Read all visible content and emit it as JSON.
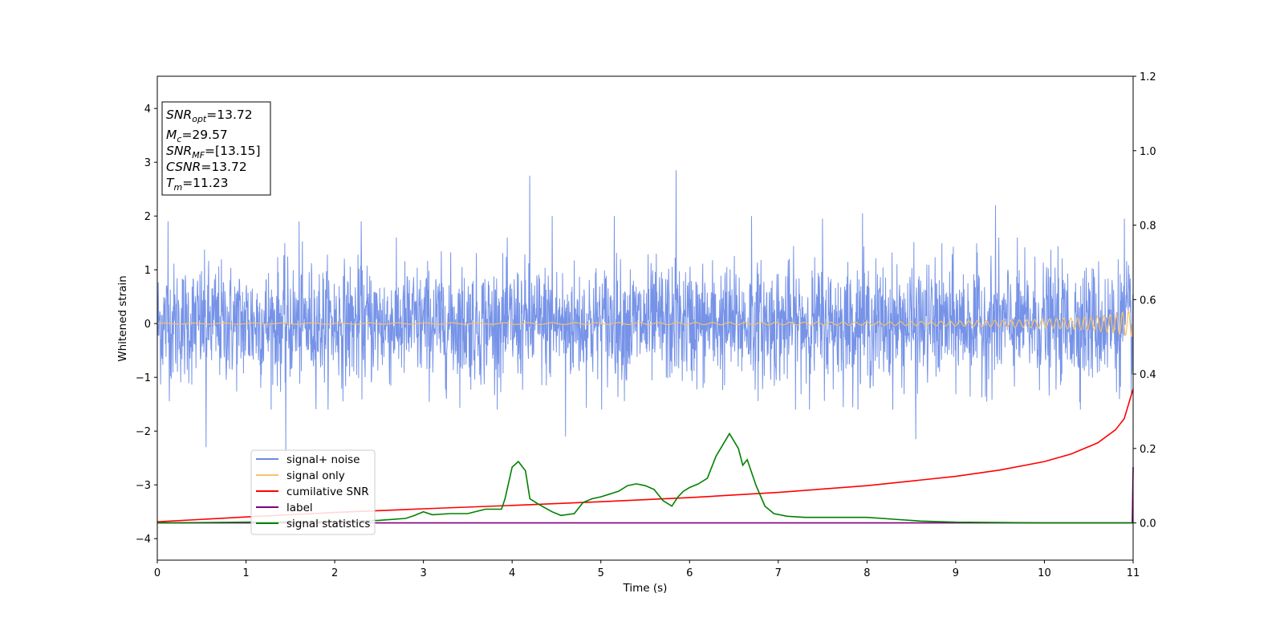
{
  "chart_data": {
    "type": "line",
    "xlabel": "Time (s)",
    "ylabel": "Whitened strain",
    "xlim": [
      0,
      11
    ],
    "ylim": [
      -4.4,
      4.6
    ],
    "y2lim": [
      -0.1,
      1.2
    ],
    "xticks": [
      "0",
      "1",
      "2",
      "3",
      "4",
      "5",
      "6",
      "7",
      "8",
      "9",
      "10",
      "11"
    ],
    "yticks": [
      "−4",
      "−3",
      "−2",
      "−1",
      "0",
      "1",
      "2",
      "3",
      "4"
    ],
    "y2ticks": [
      "0.0",
      "0.2",
      "0.4",
      "0.6",
      "0.8",
      "1.0",
      "1.2"
    ],
    "legend_position": "lower-left",
    "colors": {
      "signal_noise": "#6a8ae6",
      "signal_only": "#f5c26b",
      "cumulative_snr": "#ff0000",
      "label": "#800080",
      "signal_statistics": "#008000"
    },
    "info_box": {
      "snr_opt": "=13.72",
      "mc": "=29.57",
      "snr_mf": "=[13.15]",
      "csnr": "=13.72",
      "tm": "=11.23"
    },
    "series": [
      {
        "name": "signal+ noise",
        "axis": "left",
        "description_values": "noise, amplitude mostly within ±1.5, spikes to about 2.8 and -2.4",
        "spikes": [
          [
            0.12,
            1.9
          ],
          [
            0.55,
            -2.3
          ],
          [
            1.45,
            -2.4
          ],
          [
            1.6,
            1.9
          ],
          [
            2.3,
            1.9
          ],
          [
            4.2,
            2.75
          ],
          [
            4.45,
            2.0
          ],
          [
            4.6,
            -2.1
          ],
          [
            5.15,
            2.0
          ],
          [
            5.85,
            2.85
          ],
          [
            6.7,
            2.0
          ],
          [
            7.5,
            1.95
          ],
          [
            7.95,
            2.05
          ],
          [
            8.55,
            -2.15
          ],
          [
            9.45,
            2.2
          ],
          [
            10.9,
            1.95
          ]
        ]
      },
      {
        "name": "signal only",
        "axis": "left",
        "x": [
          0,
          2,
          4,
          6,
          8,
          9,
          10,
          10.5,
          10.8,
          11
        ],
        "amplitude": [
          0.01,
          0.012,
          0.015,
          0.02,
          0.03,
          0.045,
          0.08,
          0.12,
          0.18,
          0.25
        ]
      },
      {
        "name": "cumilative SNR",
        "axis": "right",
        "x": [
          0,
          1,
          2,
          3,
          4,
          5,
          6,
          7,
          8,
          9,
          9.5,
          10,
          10.3,
          10.6,
          10.8,
          10.9,
          11
        ],
        "y": [
          0.003,
          0.016,
          0.028,
          0.038,
          0.047,
          0.057,
          0.068,
          0.082,
          0.1,
          0.125,
          0.142,
          0.165,
          0.185,
          0.215,
          0.25,
          0.28,
          0.36
        ]
      },
      {
        "name": "label",
        "axis": "right",
        "x": [
          0,
          10.99,
          11
        ],
        "y": [
          0,
          0,
          0.15
        ]
      },
      {
        "name": "signal statistics",
        "axis": "right",
        "x": [
          0,
          1,
          2,
          2.5,
          2.8,
          2.9,
          3.0,
          3.1,
          3.3,
          3.5,
          3.7,
          3.88,
          3.92,
          4.0,
          4.07,
          4.15,
          4.2,
          4.3,
          4.45,
          4.55,
          4.7,
          4.8,
          4.9,
          5.0,
          5.2,
          5.3,
          5.4,
          5.5,
          5.6,
          5.7,
          5.8,
          5.87,
          5.93,
          6.0,
          6.1,
          6.2,
          6.3,
          6.35,
          6.45,
          6.55,
          6.6,
          6.65,
          6.75,
          6.85,
          6.95,
          7.1,
          7.3,
          7.6,
          8.0,
          8.3,
          8.6,
          9,
          10,
          11
        ],
        "y": [
          0.0,
          0.002,
          0.004,
          0.007,
          0.012,
          0.02,
          0.03,
          0.022,
          0.025,
          0.025,
          0.037,
          0.037,
          0.065,
          0.15,
          0.165,
          0.14,
          0.065,
          0.05,
          0.03,
          0.02,
          0.025,
          0.055,
          0.065,
          0.07,
          0.085,
          0.1,
          0.105,
          0.1,
          0.09,
          0.06,
          0.045,
          0.07,
          0.085,
          0.095,
          0.105,
          0.12,
          0.18,
          0.2,
          0.24,
          0.2,
          0.155,
          0.17,
          0.1,
          0.045,
          0.025,
          0.018,
          0.015,
          0.015,
          0.015,
          0.01,
          0.005,
          0.002,
          0.0,
          0.0
        ]
      }
    ]
  }
}
